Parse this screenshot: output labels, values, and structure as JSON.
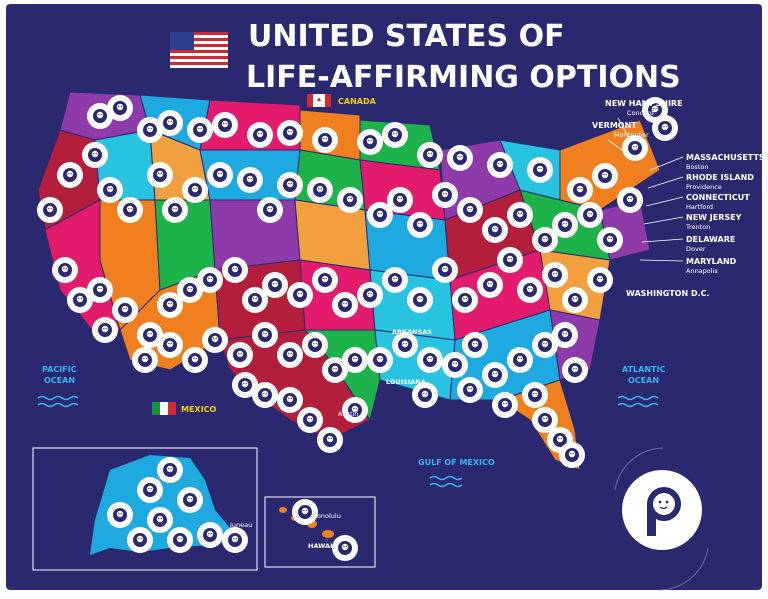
{
  "title": {
    "line1": "UNITED STATES OF",
    "line2": "LIFE-AFFIRMING OPTIONS"
  },
  "labels": {
    "canada": "CANADA",
    "mexico": "MEXICO",
    "pacific1": "PACIFIC",
    "pacific2": "OCEAN",
    "atlantic1": "ATLANTIC",
    "atlantic2": "OCEAN",
    "gulf": "GULF OF MEXICO",
    "washington": "WASHINGTON D.C.",
    "juneau": "Juneau",
    "honolulu": "Honolulu",
    "hawaii": "HAWAII",
    "louisiana": "LOUISIANA",
    "arkansas": "ARKANSAS",
    "austin": "Austin"
  },
  "east_states": [
    {
      "state": "NEW HAMPSHIRE",
      "capital": "Concord"
    },
    {
      "state": "VERMONT",
      "capital": "Montpelier"
    },
    {
      "state": "MASSACHUSETTS",
      "capital": "Boston"
    },
    {
      "state": "RHODE ISLAND",
      "capital": "Providence"
    },
    {
      "state": "CONNECTICUT",
      "capital": "Hartford"
    },
    {
      "state": "NEW JERSEY",
      "capital": "Trenton"
    },
    {
      "state": "DELAWARE",
      "capital": "Dover"
    },
    {
      "state": "MARYLAND",
      "capital": "Annapolis"
    }
  ],
  "colors": {
    "background": "#2a2970",
    "pin": "#2a2970",
    "pin_ring": "#ffffff",
    "water": "#30b7f0",
    "state_palette": [
      "#8e3aa8",
      "#1fa9e1",
      "#e31b6d",
      "#f07f1f",
      "#1eb24b",
      "#b21e3b",
      "#27c3e0",
      "#f2a03d"
    ]
  },
  "icons": {
    "pin": "baby-face-pin-icon",
    "logo": "baby-face-logo-icon",
    "flag_us": "us-flag-icon",
    "flag_canada": "canada-flag-icon",
    "flag_mexico": "mexico-flag-icon"
  }
}
